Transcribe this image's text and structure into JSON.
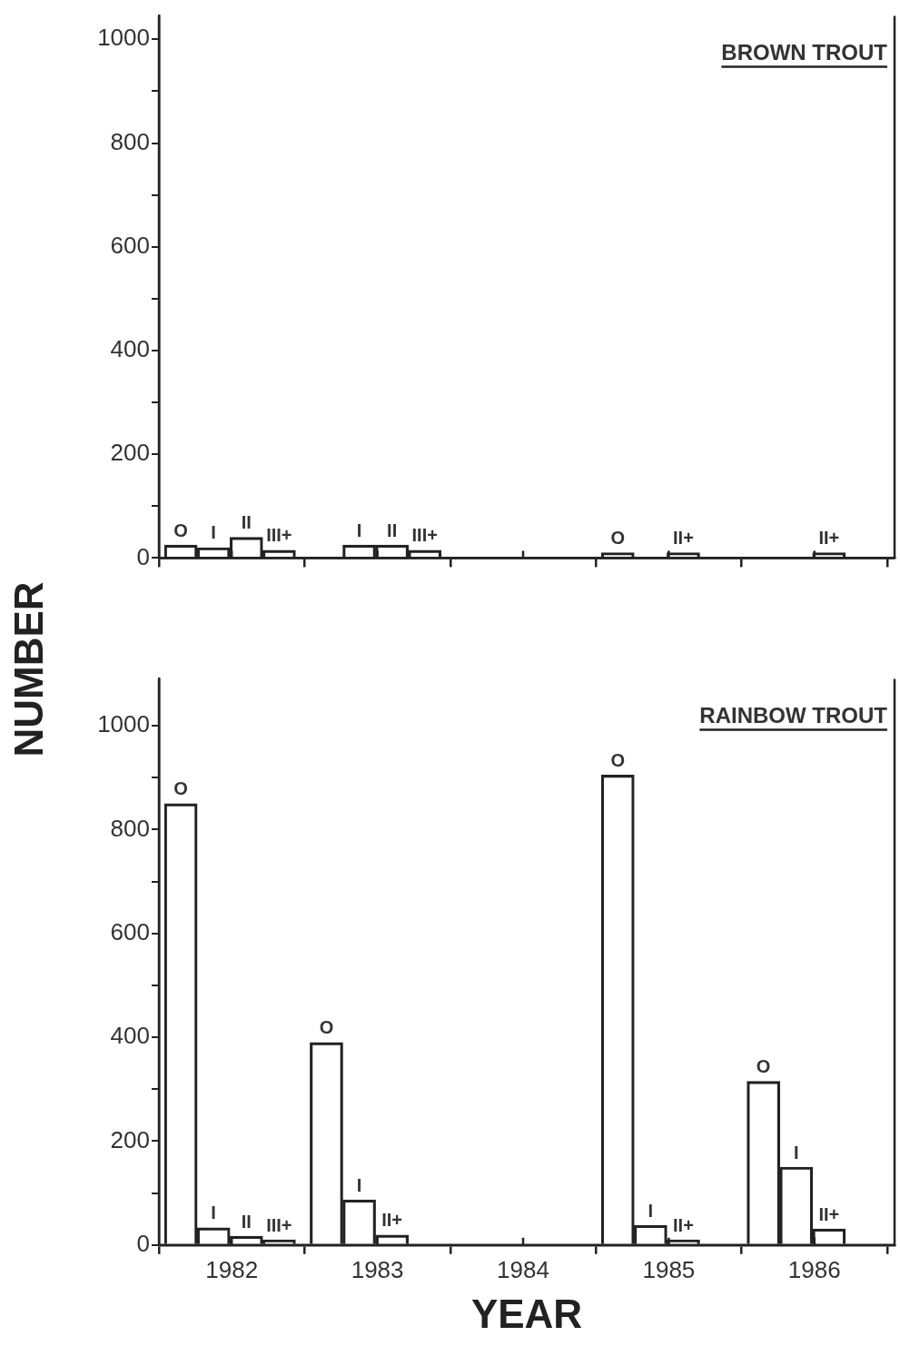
{
  "chart_data": [
    {
      "type": "bar",
      "title": "BROWN TROUT",
      "ylabel": "NUMBER",
      "color": "#222222",
      "grid": false,
      "legend": false,
      "tick_labels": "y",
      "x": [
        1981.65,
        1981.875,
        1982.1,
        1982.325,
        1982.875,
        1983.1,
        1983.325,
        1984.65,
        1985.1,
        1986.1
      ],
      "values": [
        25,
        20,
        40,
        15,
        25,
        25,
        15,
        10,
        10,
        10
      ],
      "xlim": [
        1981.5,
        1986.55
      ],
      "xticks": [
        {
          "value": 1982,
          "label": null
        },
        {
          "value": 1983,
          "label": null
        },
        {
          "value": 1984,
          "label": null
        },
        {
          "value": 1985,
          "label": null
        },
        {
          "value": 1986,
          "label": null
        }
      ],
      "ylim": [
        0,
        1045
      ],
      "yticks": [
        0,
        {
          "value": 100,
          "label": null
        },
        200,
        {
          "value": 300,
          "label": null
        },
        400,
        {
          "value": 500,
          "label": null
        },
        600,
        {
          "value": 700,
          "label": null
        },
        800,
        {
          "value": 900,
          "label": null
        },
        1000
      ],
      "annotations": [
        {
          "text": "O",
          "x": 1981.65,
          "y": 25
        },
        {
          "text": "I",
          "x": 1981.875,
          "y": 20
        },
        {
          "text": "II",
          "x": 1982.1,
          "y": 40
        },
        {
          "text": "III+",
          "x": 1982.325,
          "y": 15
        },
        {
          "text": "I",
          "x": 1982.875,
          "y": 25
        },
        {
          "text": "II",
          "x": 1983.1,
          "y": 25
        },
        {
          "text": "III+",
          "x": 1983.325,
          "y": 15
        },
        {
          "text": "O",
          "x": 1984.65,
          "y": 10
        },
        {
          "text": "II+",
          "x": 1985.1,
          "y": 10
        },
        {
          "text": "II+",
          "x": 1986.1,
          "y": 10
        }
      ]
    },
    {
      "type": "bar",
      "title": "RAINBOW TROUT",
      "xlabel": "YEAR",
      "color": "#222222",
      "grid": false,
      "legend": false,
      "x": [
        1981.65,
        1981.875,
        1982.1,
        1982.325,
        1982.65,
        1982.875,
        1983.1,
        1984.65,
        1984.875,
        1985.1,
        1985.65,
        1985.875,
        1986.1
      ],
      "values": [
        850,
        33,
        17,
        10,
        390,
        87,
        19,
        905,
        38,
        10,
        315,
        150,
        31
      ],
      "xlim": [
        1981.5,
        1986.55
      ],
      "xticks": [
        1982,
        1983,
        1984,
        1985,
        1986
      ],
      "ylim": [
        0,
        1090
      ],
      "yticks": [
        0,
        {
          "value": 100,
          "label": null
        },
        200,
        {
          "value": 300,
          "label": null
        },
        400,
        {
          "value": 500,
          "label": null
        },
        600,
        {
          "value": 700,
          "label": null
        },
        800,
        {
          "value": 900,
          "label": null
        },
        1000
      ],
      "annotations": [
        {
          "text": "O",
          "x": 1981.65,
          "y": 850
        },
        {
          "text": "I",
          "x": 1981.875,
          "y": 33
        },
        {
          "text": "II",
          "x": 1982.1,
          "y": 17
        },
        {
          "text": "III+",
          "x": 1982.325,
          "y": 10
        },
        {
          "text": "O",
          "x": 1982.65,
          "y": 390
        },
        {
          "text": "I",
          "x": 1982.875,
          "y": 87
        },
        {
          "text": "II+",
          "x": 1983.1,
          "y": 19
        },
        {
          "text": "O",
          "x": 1984.65,
          "y": 905
        },
        {
          "text": "I",
          "x": 1984.875,
          "y": 38
        },
        {
          "text": "II+",
          "x": 1985.1,
          "y": 10
        },
        {
          "text": "O",
          "x": 1985.65,
          "y": 315
        },
        {
          "text": "I",
          "x": 1985.875,
          "y": 150
        },
        {
          "text": "II+",
          "x": 1986.1,
          "y": 31
        }
      ]
    }
  ]
}
